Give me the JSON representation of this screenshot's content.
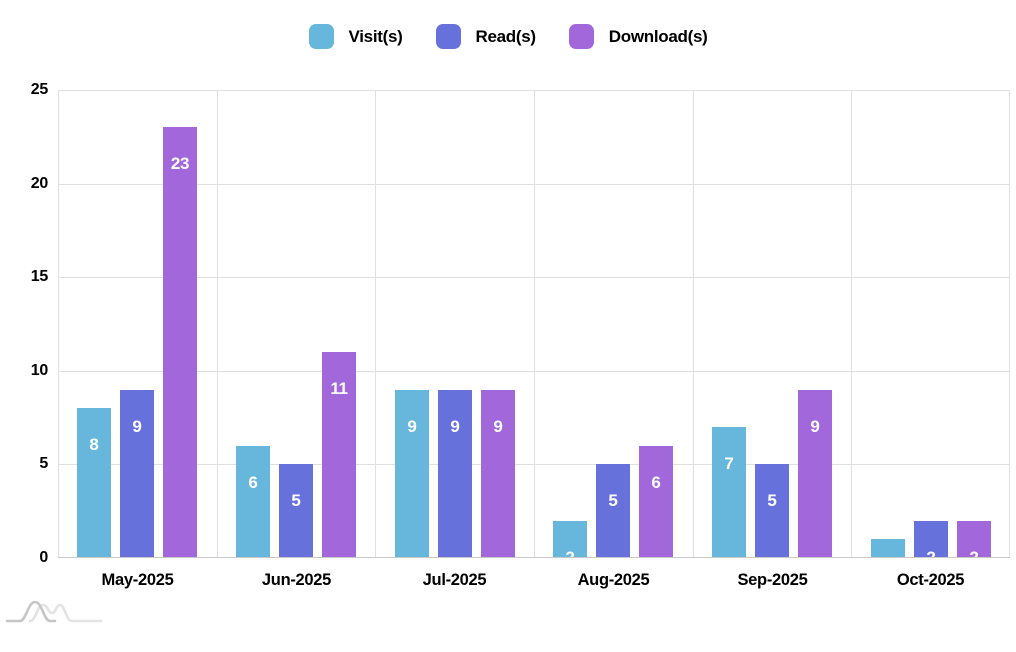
{
  "chart_data": {
    "type": "bar",
    "title": "",
    "xlabel": "",
    "ylabel": "",
    "categories": [
      "May-2025",
      "Jun-2025",
      "Jul-2025",
      "Aug-2025",
      "Sep-2025",
      "Oct-2025"
    ],
    "series": [
      {
        "name": "Visit(s)",
        "color": "#67B7DC",
        "values": [
          8,
          6,
          9,
          2,
          7,
          1
        ]
      },
      {
        "name": "Read(s)",
        "color": "#6771DC",
        "values": [
          9,
          5,
          9,
          5,
          5,
          2
        ]
      },
      {
        "name": "Download(s)",
        "color": "#A367DC",
        "values": [
          23,
          11,
          9,
          6,
          9,
          2
        ]
      }
    ],
    "ylim": [
      0,
      25
    ],
    "yticks": [
      0,
      5,
      10,
      15,
      20,
      25
    ],
    "grid": true,
    "legend_position": "top-center",
    "bar_value_labels": {
      "color": "#ffffff",
      "position": "inside-below-bar-top",
      "note": "value labels on very short bars are clipped at the baseline; the label for value 1 is not visible"
    }
  },
  "icons": {
    "watermark": "wave-curves-chart-logo"
  },
  "colors": {
    "background": "#ffffff",
    "gridline": "#e0e0e0",
    "axis_line": "#c9c9c9",
    "tick_text": "#000000",
    "bar_label_text": "#ffffff",
    "watermark_dark": "#c6c6c6",
    "watermark_light": "#e3e3e3"
  }
}
